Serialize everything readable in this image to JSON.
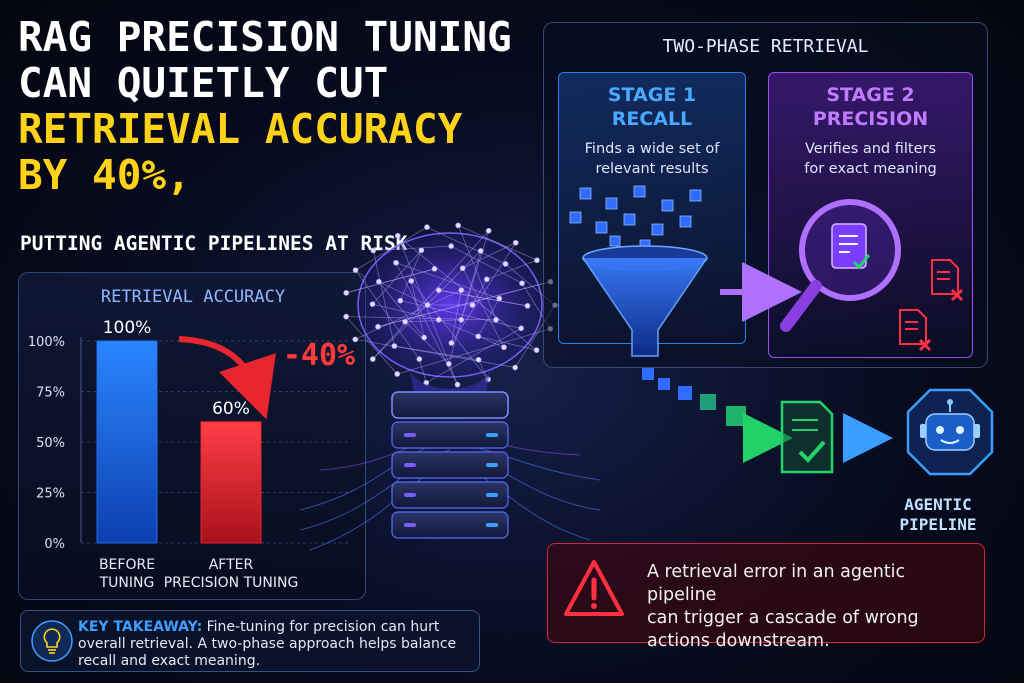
{
  "title": {
    "line1": "RAG PRECISION TUNING",
    "line2": "CAN QUIETLY CUT",
    "line3": "RETRIEVAL ACCURACY",
    "line4": "BY 40%,",
    "subtitle": "PUTTING AGENTIC PIPELINES AT RISK"
  },
  "chart_data": {
    "type": "bar",
    "title": "RETRIEVAL ACCURACY",
    "categories": [
      "BEFORE TUNING",
      "AFTER PRECISION TUNING"
    ],
    "category_lines": [
      [
        "BEFORE",
        "TUNING"
      ],
      [
        "AFTER",
        "PRECISION TUNING"
      ]
    ],
    "values": [
      100,
      60
    ],
    "value_labels": [
      "100%",
      "60%"
    ],
    "yticks": [
      "100%",
      "75%",
      "50%",
      "25%",
      "0%"
    ],
    "ylim": [
      0,
      100
    ],
    "annotation": "-40%",
    "bar_colors": [
      "#1f6ff2",
      "#e8262f"
    ]
  },
  "two_phase": {
    "title": "TWO-PHASE RETRIEVAL",
    "stage1": {
      "line1": "STAGE 1",
      "line2": "RECALL",
      "desc1": "Finds a wide set of",
      "desc2": "relevant results"
    },
    "stage2": {
      "line1": "STAGE 2",
      "line2": "PRECISION",
      "desc1": "Verifies and filters",
      "desc2": "for exact meaning"
    }
  },
  "agent": {
    "line1": "AGENTIC",
    "line2": "PIPELINE"
  },
  "warning": {
    "line1": "A retrieval error in an agentic pipeline",
    "line2": "can trigger a cascade of wrong",
    "line3": "actions downstream."
  },
  "takeaway": {
    "label": "KEY TAKEAWAY:",
    "text": " Fine-tuning for precision can hurt overall retrieval. A two-phase approach helps balance recall and exact meaning."
  },
  "colors": {
    "accent_yellow": "#ffd21a",
    "blue": "#1f6ff2",
    "red": "#e8262f",
    "purple": "#9a4cf0",
    "green": "#22d36a"
  }
}
